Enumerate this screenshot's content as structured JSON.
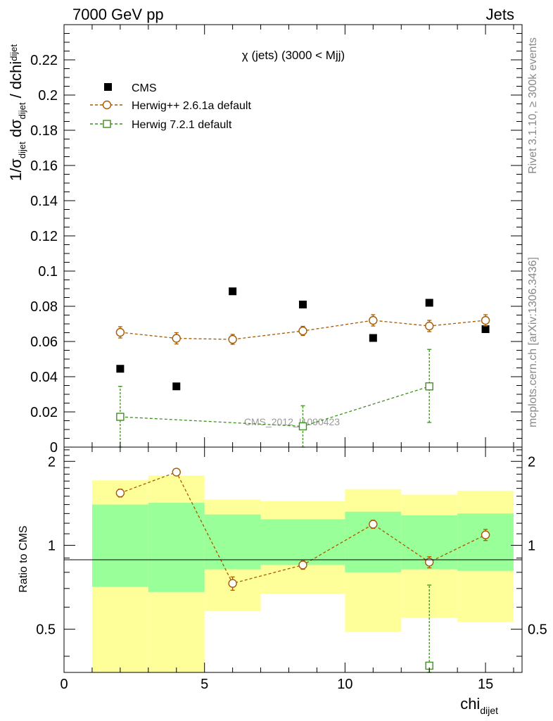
{
  "header": {
    "energy_label": "7000 GeV pp",
    "process_label": "Jets"
  },
  "side_labels": {
    "rivet": "Rivet 3.1.10, ≥ 300k events",
    "mcplots": "mcplots.cern.ch [arXiv:1306.3436]"
  },
  "chart_data": {
    "type": "scatter",
    "title": "χ (jets) (3000 < Mjj)",
    "watermark": "CMS_2012_I1090423",
    "xlabel": "chi",
    "xlabel_sub": "dijet",
    "ylabel_parts": [
      "1/σ",
      "dijet",
      " dσ",
      "dijet",
      " / dchi",
      "dijet"
    ],
    "ratio_ylabel": "Ratio to CMS",
    "xlim": [
      0,
      16.3
    ],
    "ylim_main": [
      0,
      0.24
    ],
    "ylim_ratio": [
      0.35,
      2.25
    ],
    "x_ticks": [
      0,
      5,
      10,
      15
    ],
    "x_tick_labels": [
      "0",
      "5",
      "10",
      "15"
    ],
    "y_ticks_main": [
      0,
      0.02,
      0.04,
      0.06,
      0.08,
      0.1,
      0.12,
      0.14,
      0.16,
      0.18,
      0.2,
      0.22
    ],
    "y_tick_labels_main": [
      "0",
      "0.02",
      "0.04",
      "0.06",
      "0.08",
      "0.1",
      "0.12",
      "0.14",
      "0.16",
      "0.18",
      "0.2",
      "0.22"
    ],
    "y_ticks_ratio": [
      0.5,
      1,
      2
    ],
    "y_tick_labels_ratio": [
      "0.5",
      "1",
      "2"
    ],
    "legend_position": "top-left",
    "series": [
      {
        "name": "CMS",
        "kind": "data",
        "color": "#000000",
        "marker": "filled-square",
        "x": [
          2,
          4,
          6,
          8.5,
          11,
          13,
          15
        ],
        "y": [
          0.0445,
          0.0345,
          0.0885,
          0.081,
          0.062,
          0.082,
          0.067
        ]
      },
      {
        "name": "Herwig++ 2.6.1a default",
        "kind": "mc",
        "color": "#a65a00",
        "marker": "open-circle",
        "x": [
          2,
          4,
          6,
          8.5,
          11,
          13,
          15
        ],
        "y": [
          0.0652,
          0.0618,
          0.0612,
          0.066,
          0.072,
          0.0688,
          0.072
        ],
        "yerr": [
          0.0032,
          0.0032,
          0.0028,
          0.0026,
          0.0032,
          0.0032,
          0.0032
        ],
        "ratio": [
          1.54,
          1.83,
          0.73,
          0.85,
          1.19,
          0.87,
          1.09
        ],
        "ratio_err": [
          0.05,
          0.05,
          0.04,
          0.03,
          0.04,
          0.04,
          0.05
        ]
      },
      {
        "name": "Herwig 7.2.1 default",
        "kind": "mc",
        "color": "#3f8f1f",
        "marker": "open-square",
        "x": [
          2,
          8.5,
          13
        ],
        "y": [
          0.0172,
          0.0118,
          0.0345
        ],
        "y_low": [
          0,
          0,
          0.014
        ],
        "y_high": [
          0.0345,
          0.0235,
          0.0555
        ],
        "ratio_x": [
          13
        ],
        "ratio": [
          0.37
        ],
        "ratio_low": [
          0.35
        ],
        "ratio_high": [
          0.72
        ]
      }
    ],
    "uncertainty_bands": {
      "bins": [
        [
          1,
          3
        ],
        [
          3,
          5
        ],
        [
          5,
          7
        ],
        [
          7,
          10
        ],
        [
          10,
          12
        ],
        [
          12,
          14
        ],
        [
          14,
          16
        ]
      ],
      "inner": {
        "color": "#99ff99",
        "low": [
          0.71,
          0.68,
          0.82,
          0.85,
          0.8,
          0.82,
          0.81
        ],
        "high": [
          1.4,
          1.42,
          1.29,
          1.24,
          1.32,
          1.28,
          1.3
        ]
      },
      "outer": {
        "color": "#ffff99",
        "low": [
          0.35,
          0.35,
          0.58,
          0.67,
          0.49,
          0.55,
          0.53
        ],
        "high": [
          1.71,
          1.78,
          1.46,
          1.44,
          1.59,
          1.52,
          1.57
        ]
      }
    }
  }
}
